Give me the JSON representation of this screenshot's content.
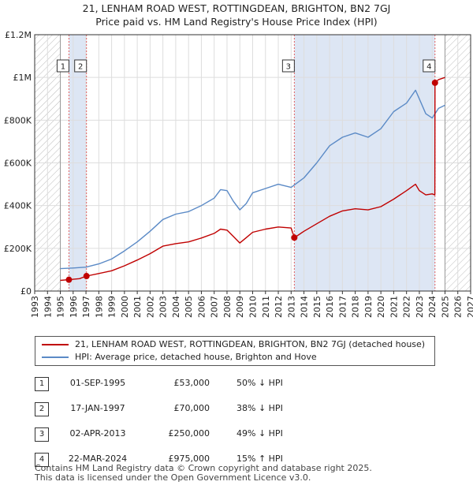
{
  "title": {
    "line1": "21, LENHAM ROAD WEST, ROTTINGDEAN, BRIGHTON, BN2 7GJ",
    "line2": "Price paid vs. HM Land Registry's House Price Index (HPI)"
  },
  "colors": {
    "property": "#c00000",
    "hpi": "#5b8ac6",
    "shade": "#dde6f4",
    "grid": "#dddddd",
    "vline": "#e06060",
    "future_hatch": "#bbbbbb"
  },
  "chart_data": {
    "type": "line",
    "title": "Price paid vs. HM Land Registry's House Price Index (HPI)",
    "xlabel": "",
    "ylabel": "",
    "xlim": [
      1993,
      2027
    ],
    "ylim": [
      0,
      1200000
    ],
    "xticks": [
      1993,
      1994,
      1995,
      1996,
      1997,
      1998,
      1999,
      2000,
      2001,
      2002,
      2003,
      2004,
      2005,
      2006,
      2007,
      2008,
      2009,
      2010,
      2011,
      2012,
      2013,
      2014,
      2015,
      2016,
      2017,
      2018,
      2019,
      2020,
      2021,
      2022,
      2023,
      2024,
      2025,
      2026,
      2027
    ],
    "ytick_values": [
      0,
      200000,
      400000,
      600000,
      800000,
      1000000,
      1200000
    ],
    "ytick_labels": [
      "£0",
      "£200K",
      "£400K",
      "£600K",
      "£800K",
      "£1M",
      "£1.2M"
    ],
    "grid": true,
    "data_start": 1995.0,
    "data_end": 2025.0,
    "shaded_ranges": [
      [
        1995.67,
        1997.04
      ],
      [
        2013.25,
        2024.22
      ]
    ],
    "series": [
      {
        "name": "21, LENHAM ROAD WEST, ROTTINGDEAN, BRIGHTON, BN2 7GJ (detached house)",
        "color": "#c00000",
        "x": [
          1995.0,
          1995.67,
          1995.68,
          1996.5,
          1997.04,
          1997.05,
          1998,
          1999,
          2000,
          2001,
          2002,
          2003,
          2004,
          2005,
          2006,
          2007,
          2007.5,
          2008,
          2008.5,
          2009.0,
          2009.5,
          2010,
          2011,
          2012,
          2013.0,
          2013.25,
          2013.26,
          2014,
          2015,
          2016,
          2017,
          2018,
          2019,
          2020,
          2021,
          2022,
          2022.7,
          2023,
          2023.5,
          2024.0,
          2024.21,
          2024.22,
          2024.5,
          2025.0
        ],
        "y": [
          50000,
          53000,
          53000,
          58000,
          70000,
          70000,
          82000,
          95000,
          118000,
          145000,
          175000,
          210000,
          222000,
          230000,
          248000,
          270000,
          290000,
          285000,
          255000,
          225000,
          250000,
          275000,
          290000,
          300000,
          295000,
          250000,
          250000,
          280000,
          315000,
          350000,
          375000,
          385000,
          380000,
          395000,
          430000,
          470000,
          500000,
          470000,
          450000,
          455000,
          450000,
          975000,
          990000,
          1000000
        ]
      },
      {
        "name": "HPI: Average price, detached house, Brighton and Hove",
        "color": "#5b8ac6",
        "x": [
          1995.0,
          1996,
          1997,
          1998,
          1999,
          2000,
          2001,
          2002,
          2003,
          2004,
          2005,
          2006,
          2007,
          2007.5,
          2008,
          2008.5,
          2009.0,
          2009.5,
          2010,
          2011,
          2012,
          2013,
          2014,
          2015,
          2016,
          2017,
          2018,
          2019,
          2020,
          2021,
          2022,
          2022.7,
          2023.0,
          2023.5,
          2024.0,
          2024.5,
          2025.0
        ],
        "y": [
          105000,
          108000,
          112000,
          127000,
          150000,
          188000,
          230000,
          280000,
          335000,
          360000,
          372000,
          400000,
          435000,
          475000,
          470000,
          420000,
          380000,
          410000,
          460000,
          480000,
          500000,
          485000,
          530000,
          600000,
          680000,
          720000,
          740000,
          720000,
          760000,
          840000,
          880000,
          940000,
          900000,
          830000,
          810000,
          855000,
          870000
        ]
      }
    ],
    "annotations": [
      {
        "id": "1",
        "date": 1995.67,
        "value": 53000
      },
      {
        "id": "2",
        "date": 1997.04,
        "value": 70000
      },
      {
        "id": "3",
        "date": 2013.25,
        "value": 250000
      },
      {
        "id": "4",
        "date": 2024.22,
        "value": 975000
      }
    ]
  },
  "legend": {
    "property_label": "21, LENHAM ROAD WEST, ROTTINGDEAN, BRIGHTON, BN2 7GJ (detached house)",
    "hpi_label": "HPI: Average price, detached house, Brighton and Hove"
  },
  "sales": [
    {
      "num": "1",
      "date": "01-SEP-1995",
      "price": "£53,000",
      "hpi": "50% ↓ HPI"
    },
    {
      "num": "2",
      "date": "17-JAN-1997",
      "price": "£70,000",
      "hpi": "38% ↓ HPI"
    },
    {
      "num": "3",
      "date": "02-APR-2013",
      "price": "£250,000",
      "hpi": "49% ↓ HPI"
    },
    {
      "num": "4",
      "date": "22-MAR-2024",
      "price": "£975,000",
      "hpi": "15% ↑ HPI"
    }
  ],
  "footer": {
    "line1": "Contains HM Land Registry data © Crown copyright and database right 2025.",
    "line2": "This data is licensed under the Open Government Licence v3.0."
  }
}
